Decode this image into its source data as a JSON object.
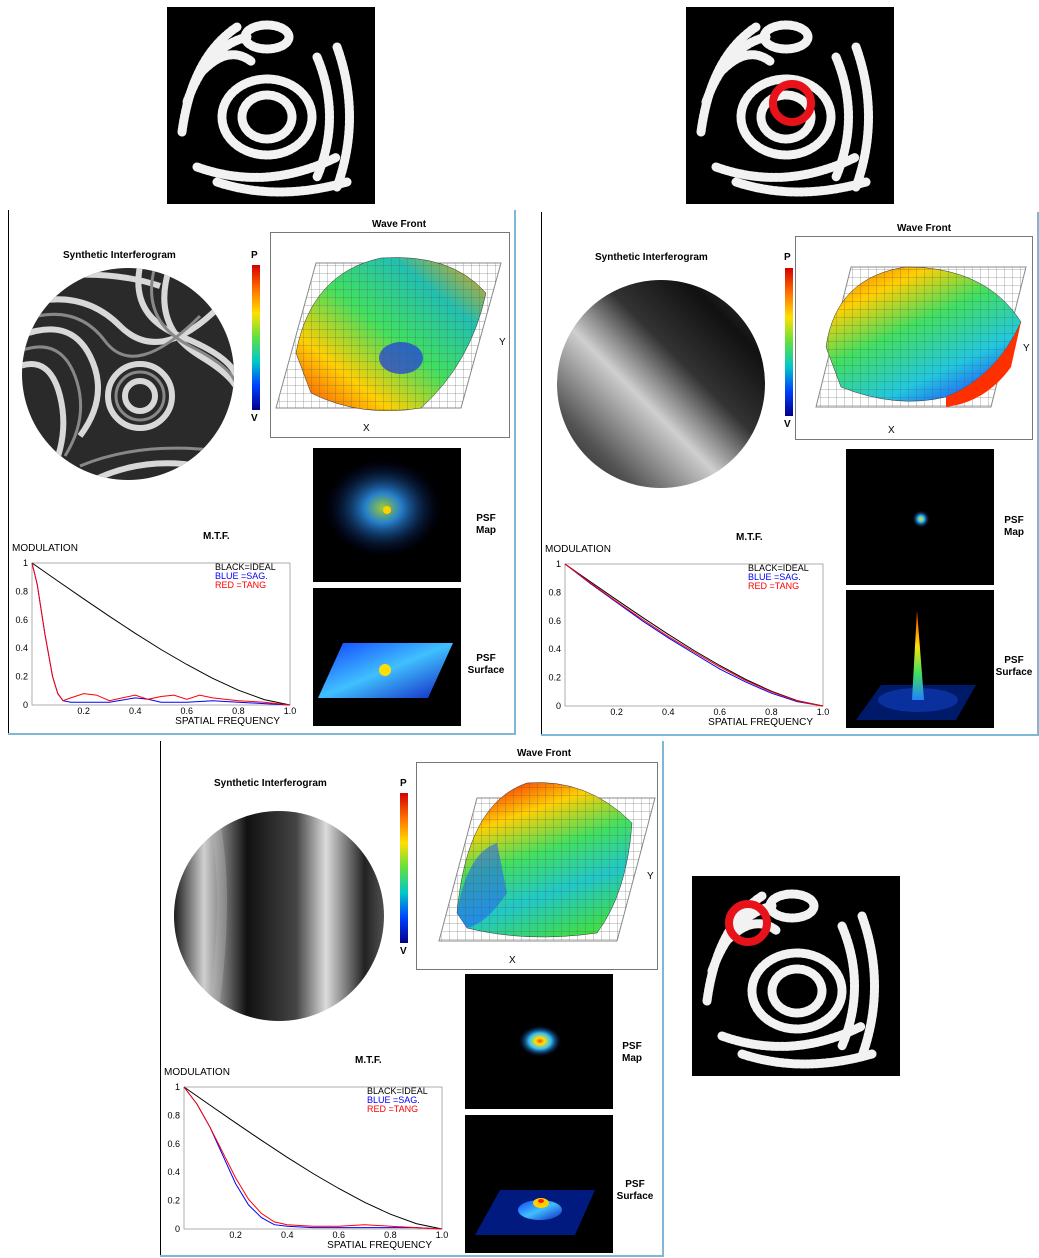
{
  "panels": [
    {
      "synthetic_title": "Synthetic Interferogram",
      "wavefront_title": "Wave Front",
      "scale_top": "P",
      "scale_bottom": "V",
      "axis_x": "X",
      "axis_y": "Y",
      "mtf_title": "M.T.F.",
      "mtf_ylabel": "MODULATION",
      "mtf_xlabel": "SPATIAL FREQUENCY",
      "legend": [
        "BLACK=IDEAL",
        "BLUE  =SAG.",
        "RED   =TANG"
      ],
      "psf_map": [
        "PSF",
        "Map"
      ],
      "psf_surface": [
        "PSF",
        "Surface"
      ]
    },
    {
      "synthetic_title": "Synthetic Interferogram",
      "wavefront_title": "Wave Front",
      "scale_top": "P",
      "scale_bottom": "V",
      "axis_x": "X",
      "axis_y": "Y",
      "mtf_title": "M.T.F.",
      "mtf_ylabel": "MODULATION",
      "mtf_xlabel": "SPATIAL FREQUENCY",
      "legend": [
        "BLACK=IDEAL",
        "BLUE  =SAG.",
        "RED   =TANG"
      ],
      "psf_map": [
        "PSF",
        "Map"
      ],
      "psf_surface": [
        "PSF",
        "Surface"
      ]
    },
    {
      "synthetic_title": "Synthetic Interferogram",
      "wavefront_title": "Wave Front",
      "scale_top": "P",
      "scale_bottom": "V",
      "axis_x": "X",
      "axis_y": "Y",
      "mtf_title": "M.T.F.",
      "mtf_ylabel": "MODULATION",
      "mtf_xlabel": "SPATIAL FREQUENCY",
      "legend": [
        "BLACK=IDEAL",
        "BLUE  =SAG.",
        "RED   =TANG"
      ],
      "psf_map": [
        "PSF",
        "Map"
      ],
      "psf_surface": [
        "PSF",
        "Surface"
      ]
    }
  ],
  "highlight_marker_color": "#e8121a",
  "chart_data": [
    {
      "type": "line",
      "x_ticks": [
        "0.2",
        "0.4",
        "0.6",
        "0.8",
        "1.0"
      ],
      "y_ticks": [
        "0",
        "0.2",
        "0.4",
        "0.6",
        "0.8",
        "1"
      ],
      "xlim": [
        0,
        1
      ],
      "ylim": [
        0,
        1
      ],
      "series": [
        {
          "name": "IDEAL",
          "color": "#000000",
          "x": [
            0,
            0.1,
            0.2,
            0.3,
            0.4,
            0.5,
            0.6,
            0.7,
            0.8,
            0.9,
            1.0
          ],
          "y": [
            1,
            0.873,
            0.748,
            0.625,
            0.505,
            0.391,
            0.285,
            0.188,
            0.104,
            0.038,
            0
          ]
        },
        {
          "name": "SAG.",
          "color": "#0000ff",
          "x": [
            0,
            0.02,
            0.05,
            0.08,
            0.1,
            0.12,
            0.15,
            0.2,
            0.3,
            0.4,
            0.45,
            0.5,
            0.6,
            0.7,
            0.8,
            0.9,
            1.0
          ],
          "y": [
            1,
            0.85,
            0.5,
            0.2,
            0.08,
            0.03,
            0.02,
            0.02,
            0.02,
            0.05,
            0.04,
            0.02,
            0.02,
            0.03,
            0.02,
            0.01,
            0
          ]
        },
        {
          "name": "TANG",
          "color": "#ff0000",
          "x": [
            0,
            0.02,
            0.05,
            0.08,
            0.1,
            0.12,
            0.15,
            0.2,
            0.25,
            0.3,
            0.35,
            0.4,
            0.45,
            0.5,
            0.55,
            0.6,
            0.65,
            0.7,
            0.8,
            0.9,
            1.0
          ],
          "y": [
            1,
            0.85,
            0.5,
            0.2,
            0.08,
            0.03,
            0.05,
            0.08,
            0.07,
            0.03,
            0.05,
            0.07,
            0.04,
            0.06,
            0.07,
            0.04,
            0.07,
            0.05,
            0.03,
            0.02,
            0
          ]
        }
      ]
    },
    {
      "type": "line",
      "x_ticks": [
        "0.2",
        "0.4",
        "0.6",
        "0.8",
        "1.0"
      ],
      "y_ticks": [
        "0",
        "0.2",
        "0.4",
        "0.6",
        "0.8",
        "1"
      ],
      "xlim": [
        0,
        1
      ],
      "ylim": [
        0,
        1
      ],
      "series": [
        {
          "name": "IDEAL",
          "color": "#000000",
          "x": [
            0,
            0.1,
            0.2,
            0.3,
            0.4,
            0.5,
            0.6,
            0.7,
            0.8,
            0.9,
            1.0
          ],
          "y": [
            1,
            0.873,
            0.748,
            0.625,
            0.505,
            0.391,
            0.285,
            0.188,
            0.104,
            0.038,
            0
          ]
        },
        {
          "name": "SAG.",
          "color": "#0000ff",
          "x": [
            0,
            0.1,
            0.2,
            0.3,
            0.4,
            0.5,
            0.6,
            0.7,
            0.8,
            0.9,
            1.0
          ],
          "y": [
            1,
            0.86,
            0.73,
            0.6,
            0.48,
            0.37,
            0.26,
            0.17,
            0.09,
            0.03,
            0
          ]
        },
        {
          "name": "TANG",
          "color": "#ff0000",
          "x": [
            0,
            0.1,
            0.2,
            0.3,
            0.4,
            0.5,
            0.6,
            0.7,
            0.8,
            0.9,
            1.0
          ],
          "y": [
            1,
            0.865,
            0.735,
            0.61,
            0.49,
            0.38,
            0.275,
            0.18,
            0.1,
            0.035,
            0
          ]
        }
      ]
    },
    {
      "type": "line",
      "x_ticks": [
        "0.2",
        "0.4",
        "0.6",
        "0.8",
        "1.0"
      ],
      "y_ticks": [
        "0",
        "0.2",
        "0.4",
        "0.6",
        "0.8",
        "1"
      ],
      "xlim": [
        0,
        1
      ],
      "ylim": [
        0,
        1
      ],
      "series": [
        {
          "name": "IDEAL",
          "color": "#000000",
          "x": [
            0,
            0.1,
            0.2,
            0.3,
            0.4,
            0.5,
            0.6,
            0.7,
            0.8,
            0.9,
            1.0
          ],
          "y": [
            1,
            0.873,
            0.748,
            0.625,
            0.505,
            0.391,
            0.285,
            0.188,
            0.104,
            0.038,
            0
          ]
        },
        {
          "name": "SAG.",
          "color": "#0000ff",
          "x": [
            0,
            0.05,
            0.1,
            0.15,
            0.2,
            0.25,
            0.3,
            0.35,
            0.4,
            0.5,
            0.6,
            0.7,
            0.8,
            0.9,
            1.0
          ],
          "y": [
            1,
            0.88,
            0.72,
            0.52,
            0.32,
            0.17,
            0.08,
            0.03,
            0.02,
            0.01,
            0.01,
            0.01,
            0.01,
            0.01,
            0
          ]
        },
        {
          "name": "TANG",
          "color": "#ff0000",
          "x": [
            0,
            0.05,
            0.1,
            0.15,
            0.2,
            0.25,
            0.3,
            0.35,
            0.4,
            0.5,
            0.6,
            0.7,
            0.8,
            0.9,
            1.0
          ],
          "y": [
            1,
            0.88,
            0.72,
            0.54,
            0.36,
            0.21,
            0.11,
            0.05,
            0.03,
            0.02,
            0.02,
            0.03,
            0.02,
            0.01,
            0
          ]
        }
      ]
    }
  ]
}
